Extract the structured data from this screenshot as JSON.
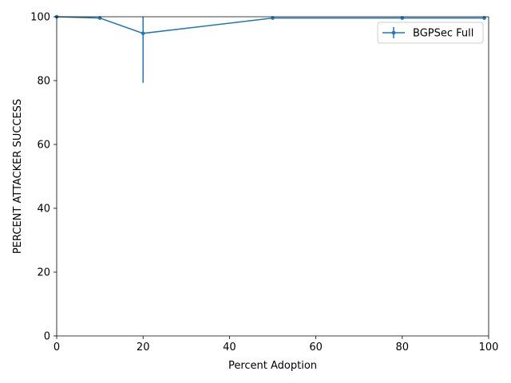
{
  "chart_data": {
    "type": "line",
    "title": "",
    "xlabel": "Percent Adoption",
    "ylabel": "PERCENT ATTACKER SUCCESS",
    "xlim": [
      0,
      100
    ],
    "ylim": [
      0,
      100
    ],
    "xticks": [
      0,
      20,
      40,
      60,
      80,
      100
    ],
    "yticks": [
      0,
      20,
      40,
      60,
      80,
      100
    ],
    "grid": false,
    "legend": {
      "placement": "top-right"
    },
    "series": [
      {
        "name": "BGPSec Full",
        "color": "#1f77b4",
        "x": [
          0,
          10,
          20,
          50,
          80,
          99
        ],
        "y": [
          100,
          99.6,
          94.8,
          99.6,
          99.6,
          99.6
        ],
        "yerr_low": [
          0,
          0,
          15.5,
          0,
          0,
          0
        ],
        "yerr_high": [
          0,
          0,
          5.2,
          0,
          0,
          0
        ]
      }
    ]
  }
}
